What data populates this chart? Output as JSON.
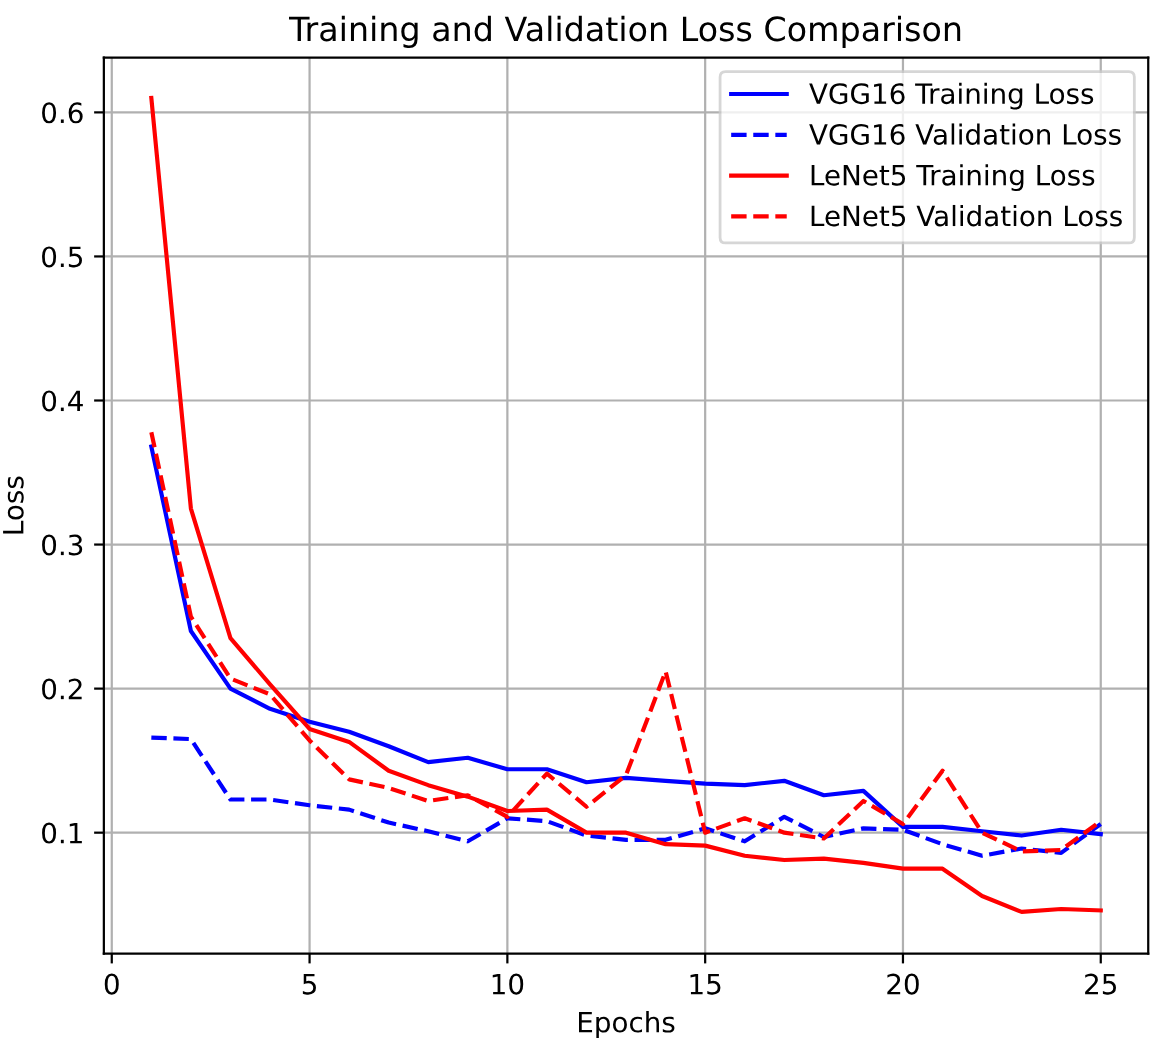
{
  "chart_data": {
    "type": "line",
    "title": "Training and Validation Loss Comparison",
    "xlabel": "Epochs",
    "ylabel": "Loss",
    "x": [
      1,
      2,
      3,
      4,
      5,
      6,
      7,
      8,
      9,
      10,
      11,
      12,
      13,
      14,
      15,
      16,
      17,
      18,
      19,
      20,
      21,
      22,
      23,
      24,
      25
    ],
    "series": [
      {
        "name": "VGG16 Training Loss",
        "color": "#0000ff",
        "line_style": "solid",
        "values": [
          0.368,
          0.24,
          0.2,
          0.186,
          0.177,
          0.17,
          0.16,
          0.149,
          0.152,
          0.144,
          0.144,
          0.135,
          0.138,
          0.136,
          0.134,
          0.133,
          0.136,
          0.126,
          0.129,
          0.104,
          0.104,
          0.101,
          0.098,
          0.102,
          0.099
        ]
      },
      {
        "name": "VGG16 Validation Loss",
        "color": "#0000ff",
        "line_style": "dashed",
        "values": [
          0.166,
          0.165,
          0.123,
          0.123,
          0.119,
          0.116,
          0.107,
          0.101,
          0.094,
          0.11,
          0.108,
          0.098,
          0.095,
          0.095,
          0.103,
          0.094,
          0.111,
          0.097,
          0.103,
          0.102,
          0.092,
          0.084,
          0.089,
          0.086,
          0.106
        ]
      },
      {
        "name": "LeNet5 Training Loss",
        "color": "#ff0000",
        "line_style": "solid",
        "values": [
          0.61,
          0.325,
          0.235,
          0.203,
          0.172,
          0.163,
          0.143,
          0.133,
          0.125,
          0.115,
          0.116,
          0.1,
          0.1,
          0.092,
          0.091,
          0.084,
          0.081,
          0.082,
          0.079,
          0.075,
          0.075,
          0.056,
          0.045,
          0.047,
          0.046
        ]
      },
      {
        "name": "LeNet5 Validation Loss",
        "color": "#ff0000",
        "line_style": "dashed",
        "values": [
          0.378,
          0.25,
          0.207,
          0.196,
          0.164,
          0.137,
          0.131,
          0.122,
          0.126,
          0.111,
          0.141,
          0.118,
          0.14,
          0.212,
          0.1,
          0.11,
          0.1,
          0.096,
          0.122,
          0.106,
          0.143,
          0.1,
          0.087,
          0.088,
          0.108
        ]
      }
    ],
    "xlim": [
      -0.2,
      26.2
    ],
    "ylim": [
      0.016,
      0.638
    ],
    "xticks": [
      0,
      5,
      10,
      15,
      20,
      25
    ],
    "yticks": [
      0.1,
      0.2,
      0.3,
      0.4,
      0.5,
      0.6
    ],
    "grid": true,
    "legend": "top right",
    "marker": "none"
  }
}
